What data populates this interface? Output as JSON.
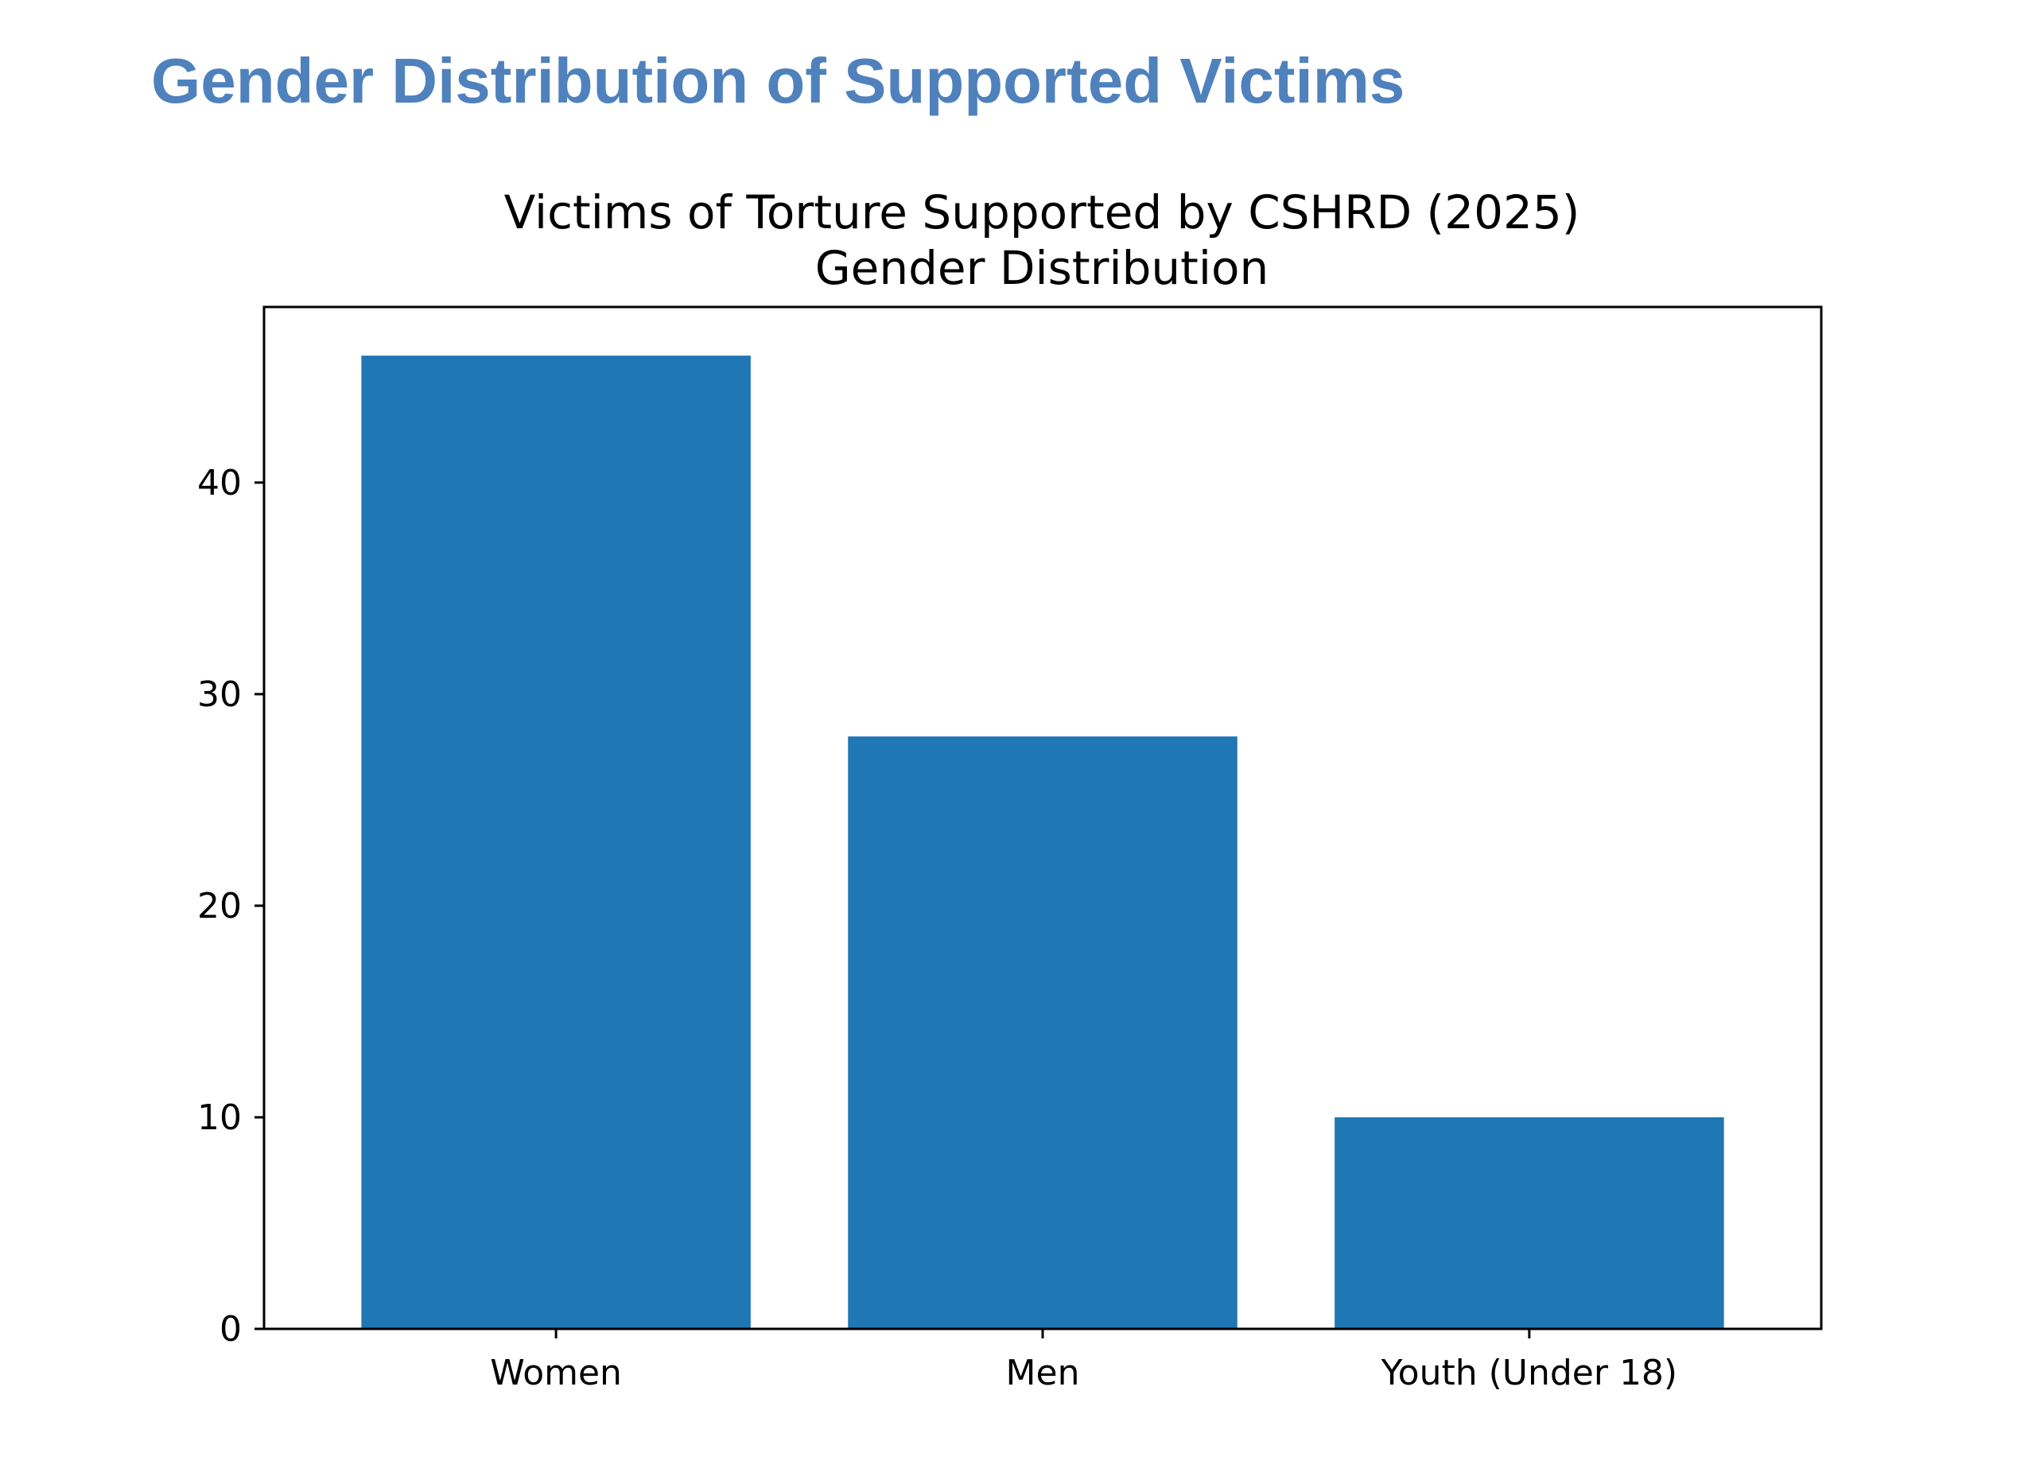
{
  "page": {
    "heading": "Gender Distribution of Supported Victims"
  },
  "chart_data": {
    "type": "bar",
    "title": "Victims of Torture Supported by CSHRD (2025)",
    "subtitle": "Gender Distribution",
    "xlabel": "",
    "ylabel": "",
    "categories": [
      "Women",
      "Men",
      "Youth (Under 18)"
    ],
    "values": [
      46,
      28,
      10
    ],
    "ylim": [
      0,
      48.3
    ],
    "yticks": [
      0,
      10,
      20,
      30,
      40
    ],
    "grid": false,
    "legend": "none",
    "bar_color": "#1f77b4"
  }
}
